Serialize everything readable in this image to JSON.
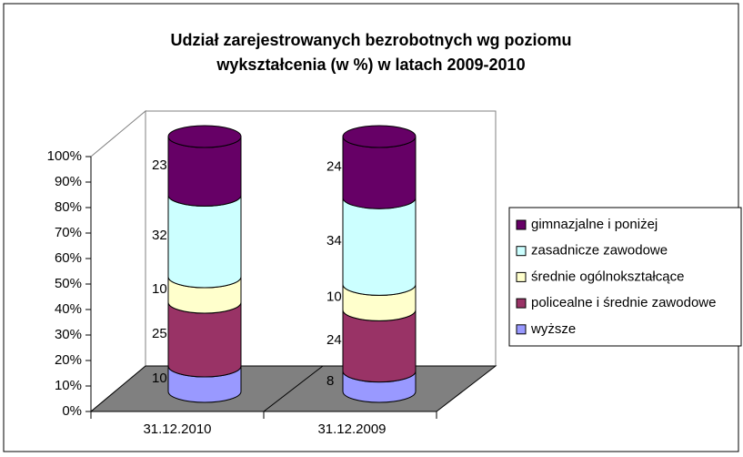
{
  "chart_data": {
    "type": "cylinder-stacked-100",
    "title": "Udział zarejestrowanych bezrobotnych wg poziomu",
    "subtitle": "wykształcenia (w %) w latach 2009-2010",
    "categories": [
      "31.12.2010",
      "31.12.2009"
    ],
    "series": [
      {
        "name": "wyższe",
        "color": "#9999ff",
        "values": [
          10,
          8
        ]
      },
      {
        "name": "policealne i średnie zawodowe",
        "color": "#993366",
        "values": [
          25,
          24
        ]
      },
      {
        "name": "średnie ogólnokształcące",
        "color": "#ffffcc",
        "values": [
          10,
          10
        ]
      },
      {
        "name": "zasadnicze zawodowe",
        "color": "#ccffff",
        "values": [
          32,
          34
        ]
      },
      {
        "name": "gimnazjalne i poniżej",
        "color": "#660066",
        "values": [
          23,
          24
        ]
      }
    ],
    "ylim": [
      0,
      100
    ],
    "yticks": [
      {
        "value": 0,
        "label": "0%"
      },
      {
        "value": 10,
        "label": "10%"
      },
      {
        "value": 20,
        "label": "20%"
      },
      {
        "value": 30,
        "label": "30%"
      },
      {
        "value": 40,
        "label": "40%"
      },
      {
        "value": 50,
        "label": "50%"
      },
      {
        "value": 60,
        "label": "60%"
      },
      {
        "value": 70,
        "label": "70%"
      },
      {
        "value": 80,
        "label": "80%"
      },
      {
        "value": 90,
        "label": "90%"
      },
      {
        "value": 100,
        "label": "100%"
      }
    ],
    "legend": "right"
  }
}
